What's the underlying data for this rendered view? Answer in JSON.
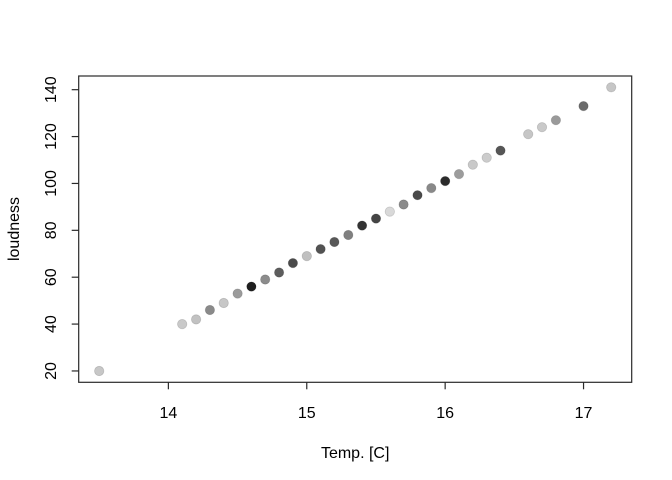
{
  "figure": {
    "background": "#ffffff",
    "axis_color": "#000000"
  },
  "chart_data": {
    "type": "scatter",
    "title": "",
    "xlabel": "Temp. [C]",
    "ylabel": "loudness",
    "x": [
      13.5,
      14.1,
      14.2,
      14.3,
      14.4,
      14.5,
      14.6,
      14.7,
      14.8,
      14.9,
      15.0,
      15.1,
      15.2,
      15.3,
      15.4,
      15.5,
      15.6,
      15.7,
      15.8,
      15.9,
      16.0,
      16.1,
      16.2,
      16.3,
      16.4,
      16.6,
      16.7,
      16.8,
      17.0,
      17.2
    ],
    "y": [
      20,
      40,
      42,
      46,
      49,
      53,
      56,
      59,
      62,
      66,
      69,
      72,
      75,
      78,
      82,
      85,
      88,
      91,
      95,
      98,
      101,
      104,
      108,
      111,
      114,
      121,
      124,
      127,
      133,
      141
    ],
    "point_colors": [
      "#c7c7c7",
      "#c9c9c9",
      "#c2c2c2",
      "#8a8a8a",
      "#c7c7c7",
      "#9b9b9b",
      "#1f1f1f",
      "#8c8c8c",
      "#5d5d5d",
      "#4a4a4a",
      "#c0c0c0",
      "#525252",
      "#585858",
      "#808080",
      "#333333",
      "#454545",
      "#d9d9d9",
      "#8a8a8a",
      "#4a4a4a",
      "#898989",
      "#2b2b2b",
      "#9c9c9c",
      "#c9c9c9",
      "#cccccc",
      "#565656",
      "#c6c6c6",
      "#c9c9c9",
      "#9a9a9a",
      "#6b6b6b",
      "#c6c6c6"
    ],
    "x_ticks": [
      14,
      15,
      16,
      17
    ],
    "y_ticks": [
      20,
      40,
      60,
      80,
      100,
      120,
      140
    ],
    "xlim": [
      13.352,
      17.348
    ],
    "ylim": [
      15.16,
      145.84
    ],
    "grid": false,
    "legend": null,
    "marker": "filled-circle",
    "point_border": "rgba(0,0,0,0.15)"
  }
}
